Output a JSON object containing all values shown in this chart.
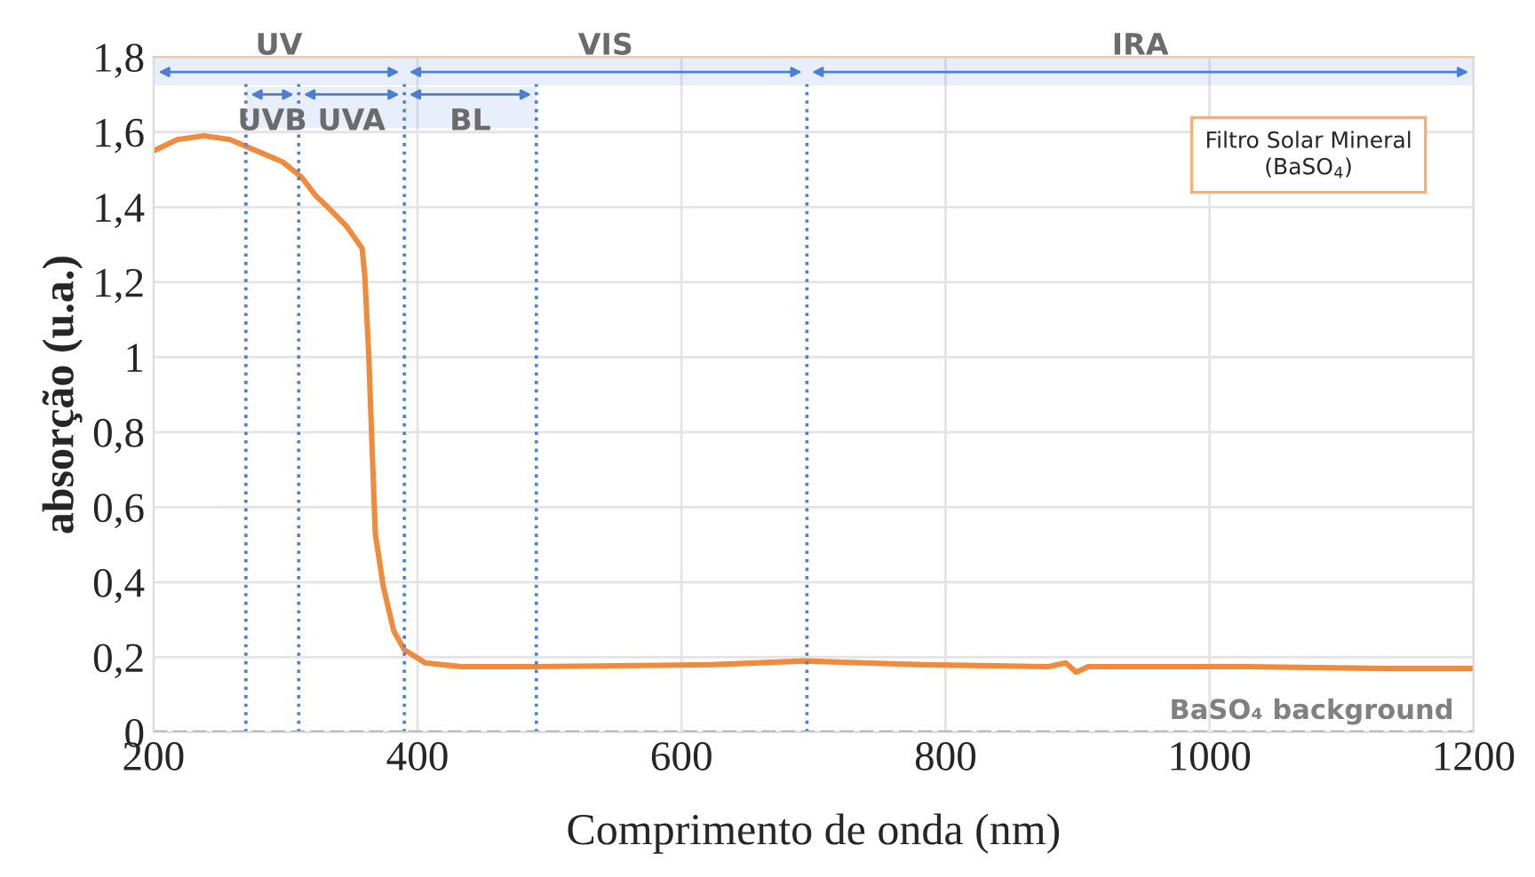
{
  "chart_data": {
    "type": "line",
    "xlabel": "Comprimento de onda (nm)",
    "ylabel": "absorção (u.a.)",
    "xlim": [
      200,
      1200
    ],
    "xticks": [
      200,
      400,
      600,
      800,
      1000,
      1200
    ],
    "ylim": [
      0,
      1.8
    ],
    "yticks": [
      0,
      {
        "value": 0.2,
        "label": "0,2"
      },
      {
        "value": 0.4,
        "label": "0,4"
      },
      {
        "value": 0.6,
        "label": "0,6"
      },
      {
        "value": 0.8,
        "label": "0,8"
      },
      1,
      {
        "value": 1.2,
        "label": "1,2"
      },
      {
        "value": 1.4,
        "label": "1,4"
      },
      {
        "value": 1.6,
        "label": "1,6"
      },
      {
        "value": 1.8,
        "label": "1,8"
      }
    ],
    "grid": true,
    "series": [
      {
        "color": "#f08a3c",
        "x": [
          200,
          218,
          238,
          258,
          278,
          298,
          312,
          323,
          332,
          346,
          352,
          358,
          360,
          363,
          366,
          368,
          374,
          382,
          390,
          406,
          433,
          487,
          622,
          693,
          784,
          878,
          891,
          899,
          908,
          1026,
          1134,
          1200
        ],
        "values": [
          1.55,
          1.58,
          1.59,
          1.58,
          1.55,
          1.52,
          1.48,
          1.43,
          1.4,
          1.35,
          1.32,
          1.29,
          1.22,
          1.01,
          0.72,
          0.53,
          0.39,
          0.27,
          0.22,
          0.185,
          0.175,
          0.175,
          0.18,
          0.19,
          0.18,
          0.175,
          0.185,
          0.16,
          0.175,
          0.175,
          0.17,
          0.17
        ]
      }
    ],
    "ref_lines": [
      {
        "axis": "x",
        "value": 270,
        "color": "#4a7fd4",
        "line_style": "dotted"
      },
      {
        "axis": "x",
        "value": 310,
        "color": "#4a7fd4",
        "line_style": "dotted"
      },
      {
        "axis": "x",
        "value": 390,
        "color": "#4a7fd4",
        "line_style": "dotted"
      },
      {
        "axis": "x",
        "value": 490,
        "color": "#4a7fd4",
        "line_style": "dotted"
      },
      {
        "axis": "x",
        "value": 695,
        "color": "#4a7fd4",
        "line_style": "dotted"
      },
      {
        "axis": "y",
        "value": 0,
        "label": "BaSO₄ background",
        "color": "#808080",
        "line_style": "dashed"
      }
    ],
    "bands": [
      {
        "axis": "x",
        "from": 200,
        "to": 390,
        "label": "UV",
        "color": "#4a7fd4"
      },
      {
        "axis": "x",
        "from": 390,
        "to": 695,
        "label": "VIS",
        "color": "#4a7fd4"
      },
      {
        "axis": "x",
        "from": 695,
        "to": 1200,
        "label": "IRA",
        "color": "#4a7fd4"
      },
      {
        "axis": "x",
        "from": 270,
        "to": 310,
        "label": "UVB",
        "color": "#4a7fd4"
      },
      {
        "axis": "x",
        "from": 310,
        "to": 390,
        "label": "UVA",
        "color": "#4a7fd4"
      },
      {
        "axis": "x",
        "from": 390,
        "to": 490,
        "label": "BL",
        "color": "#4a7fd4"
      }
    ],
    "annotations": [
      "Filtro Solar Mineral\n(BaSO$_{4}$)"
    ]
  }
}
